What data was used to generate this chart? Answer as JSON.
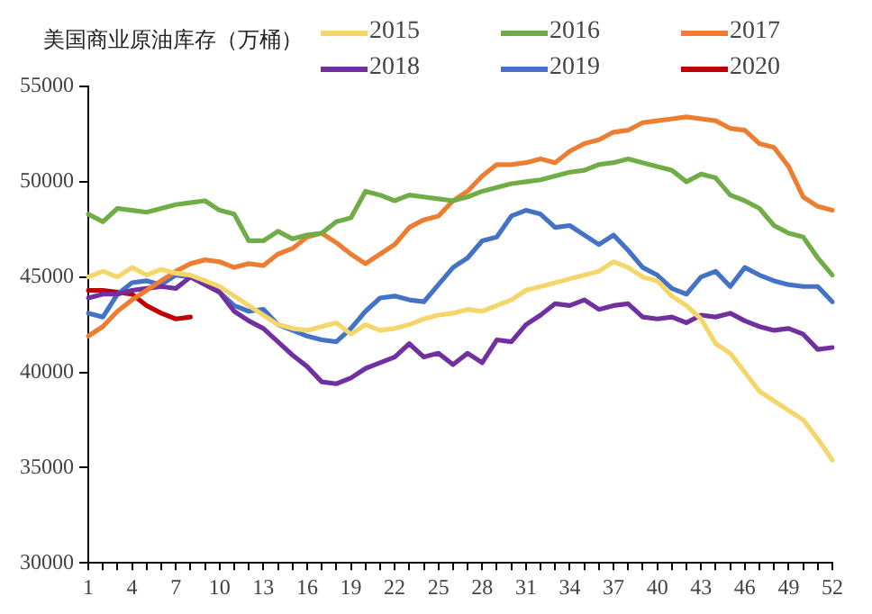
{
  "chart_data": {
    "type": "line",
    "title": "美国商业原油库存（万桶）",
    "categories": [
      "1",
      null,
      null,
      "4",
      null,
      null,
      "7",
      null,
      null,
      "10",
      null,
      null,
      "13",
      null,
      null,
      "16",
      null,
      null,
      "19",
      null,
      null,
      "22",
      null,
      null,
      "25",
      null,
      null,
      "28",
      null,
      null,
      "31",
      null,
      null,
      "34",
      null,
      null,
      "37",
      null,
      null,
      "40",
      null,
      null,
      "43",
      null,
      null,
      "46",
      null,
      null,
      "49",
      null,
      null,
      "52"
    ],
    "ylim": [
      30000,
      55000
    ],
    "yticks": [
      30000,
      35000,
      40000,
      45000,
      50000,
      55000
    ],
    "grid": false,
    "legend": "top right",
    "marker": "none",
    "line_style": "solid",
    "series": [
      {
        "name": "2015",
        "color": "#f5d66b",
        "values": [
          45000,
          45300,
          45000,
          45500,
          45100,
          45400,
          45200,
          45100,
          44800,
          44500,
          44000,
          43500,
          43000,
          42500,
          42300,
          42200,
          42400,
          42600,
          42000,
          42500,
          42200,
          42300,
          42500,
          42800,
          43000,
          43100,
          43300,
          43200,
          43500,
          43800,
          44300,
          44500,
          44700,
          44900,
          45100,
          45300,
          45800,
          45500,
          45000,
          44800,
          44000,
          43500,
          42800,
          41500,
          41000,
          40000,
          39000,
          38500,
          38000,
          37500,
          36500,
          35400
        ]
      },
      {
        "name": "2016",
        "color": "#70ad47",
        "values": [
          48300,
          47900,
          48600,
          48500,
          48400,
          48600,
          48800,
          48900,
          49000,
          48500,
          48300,
          46900,
          46900,
          47400,
          47000,
          47200,
          47300,
          47900,
          48100,
          49500,
          49300,
          49000,
          49300,
          49200,
          49100,
          49000,
          49200,
          49500,
          49700,
          49900,
          50000,
          50100,
          50300,
          50500,
          50600,
          50900,
          51000,
          51200,
          51000,
          50800,
          50600,
          50000,
          50400,
          50200,
          49300,
          49000,
          48600,
          47700,
          47300,
          47100,
          46000,
          45100
        ]
      },
      {
        "name": "2017",
        "color": "#ed7d31",
        "values": [
          41900,
          42400,
          43200,
          43800,
          44300,
          44800,
          45300,
          45700,
          45900,
          45800,
          45500,
          45700,
          45600,
          46200,
          46500,
          47100,
          47300,
          46800,
          46200,
          45700,
          46200,
          46700,
          47600,
          48000,
          48200,
          49000,
          49500,
          50300,
          50900,
          50900,
          51000,
          51200,
          51000,
          51600,
          52000,
          52200,
          52600,
          52700,
          53100,
          53200,
          53300,
          53400,
          53300,
          53200,
          52800,
          52700,
          52000,
          51800,
          50800,
          49200,
          48700,
          48500
        ]
      },
      {
        "name": "2018",
        "color": "#7030a0",
        "values": [
          43900,
          44100,
          44100,
          44300,
          44400,
          44500,
          44400,
          45000,
          44600,
          44200,
          43200,
          42700,
          42300,
          41600,
          40900,
          40300,
          39500,
          39400,
          39700,
          40200,
          40500,
          40800,
          41500,
          40800,
          41000,
          40400,
          41000,
          40500,
          41700,
          41600,
          42500,
          43000,
          43600,
          43500,
          43800,
          43300,
          43500,
          43600,
          42900,
          42800,
          42900,
          42600,
          43000,
          42900,
          43100,
          42700,
          42400,
          42200,
          42300,
          42000,
          41200,
          41300
        ]
      },
      {
        "name": "2019",
        "color": "#4472c4",
        "values": [
          43100,
          42900,
          44100,
          44700,
          44800,
          44600,
          45100,
          45000,
          44800,
          44200,
          43500,
          43200,
          43300,
          42500,
          42200,
          41900,
          41700,
          41600,
          42300,
          43200,
          43900,
          44000,
          43800,
          43700,
          44600,
          45500,
          46000,
          46900,
          47100,
          48200,
          48500,
          48300,
          47600,
          47700,
          47200,
          46700,
          47200,
          46400,
          45500,
          45100,
          44400,
          44100,
          45000,
          45300,
          44500,
          45500,
          45100,
          44800,
          44600,
          44500,
          44500,
          43700
        ]
      },
      {
        "name": "2020",
        "color": "#c00000",
        "values": [
          44300,
          44300,
          44200,
          44100,
          43500,
          43100,
          42800,
          42900,
          null,
          null,
          null,
          null,
          null,
          null,
          null,
          null,
          null,
          null,
          null,
          null,
          null,
          null,
          null,
          null,
          null,
          null,
          null,
          null,
          null,
          null,
          null,
          null,
          null,
          null,
          null,
          null,
          null,
          null,
          null,
          null,
          null,
          null,
          null,
          null,
          null,
          null,
          null,
          null,
          null,
          null,
          null,
          null
        ]
      }
    ]
  }
}
